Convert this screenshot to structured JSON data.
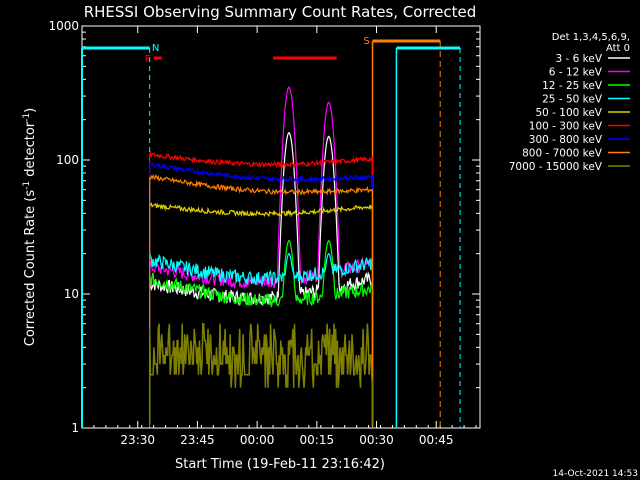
{
  "chart_data": {
    "type": "line",
    "title": "RHESSI Observing Summary Count Rates, Corrected",
    "xlabel": "Start Time (19-Feb-11 23:16:42)",
    "ylabel_main": "Corrected Count Rate (s",
    "ylabel_sup1": "-1",
    "ylabel_mid": " detector",
    "ylabel_sup2": "-1",
    "ylabel_end": ")",
    "yscale": "log",
    "xlim_min": [
      0,
      70
    ],
    "ylim": [
      1,
      1000
    ],
    "x_ticks": [
      {
        "t": 14,
        "label": "23:30"
      },
      {
        "t": 29,
        "label": "23:45"
      },
      {
        "t": 44,
        "label": "00:00"
      },
      {
        "t": 59,
        "label": "00:15"
      },
      {
        "t": 74,
        "label": "00:30"
      },
      {
        "t": 89,
        "label": "00:45"
      }
    ],
    "xlim": [
      0,
      100
    ],
    "y_ticks": [
      {
        "v": 1,
        "label": "1"
      },
      {
        "v": 10,
        "label": "10"
      },
      {
        "v": 100,
        "label": "100"
      },
      {
        "v": 1000,
        "label": "1000"
      }
    ],
    "legend_header": [
      "Det 1,3,4,5,6,9,",
      "Att 0"
    ],
    "legend_placement": "right",
    "series": [
      {
        "name": "3 - 6 keV",
        "color": "#ffffff",
        "key": "s1"
      },
      {
        "name": "6 - 12 keV",
        "color": "#ff00ff",
        "key": "s2"
      },
      {
        "name": "12 - 25 keV",
        "color": "#00ff00",
        "key": "s3"
      },
      {
        "name": "25 - 50 keV",
        "color": "#00ffff",
        "key": "s4"
      },
      {
        "name": "50 - 100 keV",
        "color": "#e0d000",
        "key": "s5"
      },
      {
        "name": "100 - 300 keV",
        "color": "#ff0000",
        "key": "s6"
      },
      {
        "name": "300 - 800 keV",
        "color": "#0000ff",
        "key": "s7"
      },
      {
        "name": "800 - 7000 keV",
        "color": "#ff8000",
        "key": "s8"
      },
      {
        "name": "7000 - 15000 keV",
        "color": "#808000",
        "key": "s9"
      }
    ],
    "data_window": [
      17,
      73
    ],
    "levels_start": {
      "s1": 12,
      "s2": 16,
      "s3": 13,
      "s4": 18,
      "s5": 46,
      "s6": 110,
      "s7": 93,
      "s8": 75,
      "s9": 3
    },
    "levels_end": {
      "s1": 13,
      "s2": 17,
      "s3": 11,
      "s4": 17,
      "s5": 45,
      "s6": 102,
      "s7": 75,
      "s8": 60,
      "s9": 3
    },
    "flare_peaks": [
      {
        "t": 52,
        "s2": 350,
        "s1": 160
      },
      {
        "t": 62,
        "s2": 270,
        "s1": 150
      }
    ],
    "flag_annotations": [
      {
        "text": "F",
        "color": "#ff0000",
        "t_start": 18,
        "t_end": 20
      },
      {
        "text": "N",
        "color": "#00ffff",
        "t": 17
      },
      {
        "text": "S",
        "color": "#ff8000",
        "t_start": 73,
        "t_end": 90
      }
    ],
    "flare_bar": {
      "t_start": 48,
      "t_end": 64,
      "color": "#ff0000"
    },
    "saa_window": {
      "t_start": 73,
      "t_end": 90,
      "color": "#ff8000"
    },
    "night_windows": [
      {
        "t_start": 0,
        "t_end": 17,
        "color": "#00ffff"
      },
      {
        "t_start": 79,
        "t_end": 95,
        "color": "#00ffff"
      }
    ]
  },
  "footer_date": "14-Oct-2021 14:53"
}
